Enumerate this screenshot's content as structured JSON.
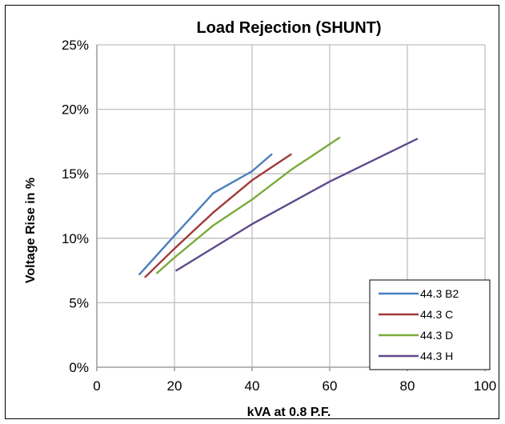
{
  "chart_data": {
    "type": "line",
    "title": "Load Rejection (SHUNT)",
    "xlabel": "kVA at 0.8 P.F.",
    "ylabel": "Voltage Rise in %",
    "xlim": [
      0,
      100
    ],
    "ylim": [
      0,
      25
    ],
    "x_ticks": [
      "0",
      "20",
      "40",
      "60",
      "80",
      "100"
    ],
    "y_ticks": [
      "0%",
      "5%",
      "10%",
      "15%",
      "20%",
      "25%"
    ],
    "grid": true,
    "legend_position": "bottom-right",
    "series": [
      {
        "name": "44.3 B2",
        "color": "#4a7ebb",
        "points": [
          [
            11,
            7.2
          ],
          [
            20,
            10.2
          ],
          [
            30,
            13.5
          ],
          [
            40,
            15.2
          ],
          [
            45,
            16.5
          ]
        ]
      },
      {
        "name": "44.3 C",
        "color": "#a03a37",
        "points": [
          [
            12.5,
            7.0
          ],
          [
            20,
            9.2
          ],
          [
            30,
            12.0
          ],
          [
            40,
            14.5
          ],
          [
            50,
            16.5
          ]
        ]
      },
      {
        "name": "44.3 D",
        "color": "#7aab3a",
        "points": [
          [
            15.5,
            7.3
          ],
          [
            20,
            8.5
          ],
          [
            30,
            11.0
          ],
          [
            40,
            13.0
          ],
          [
            50,
            15.3
          ],
          [
            62.5,
            17.8
          ]
        ]
      },
      {
        "name": "44.3 H",
        "color": "#5e4a8a",
        "points": [
          [
            20.5,
            7.5
          ],
          [
            40,
            11.1
          ],
          [
            60,
            14.4
          ],
          [
            82.5,
            17.7
          ]
        ]
      }
    ]
  }
}
